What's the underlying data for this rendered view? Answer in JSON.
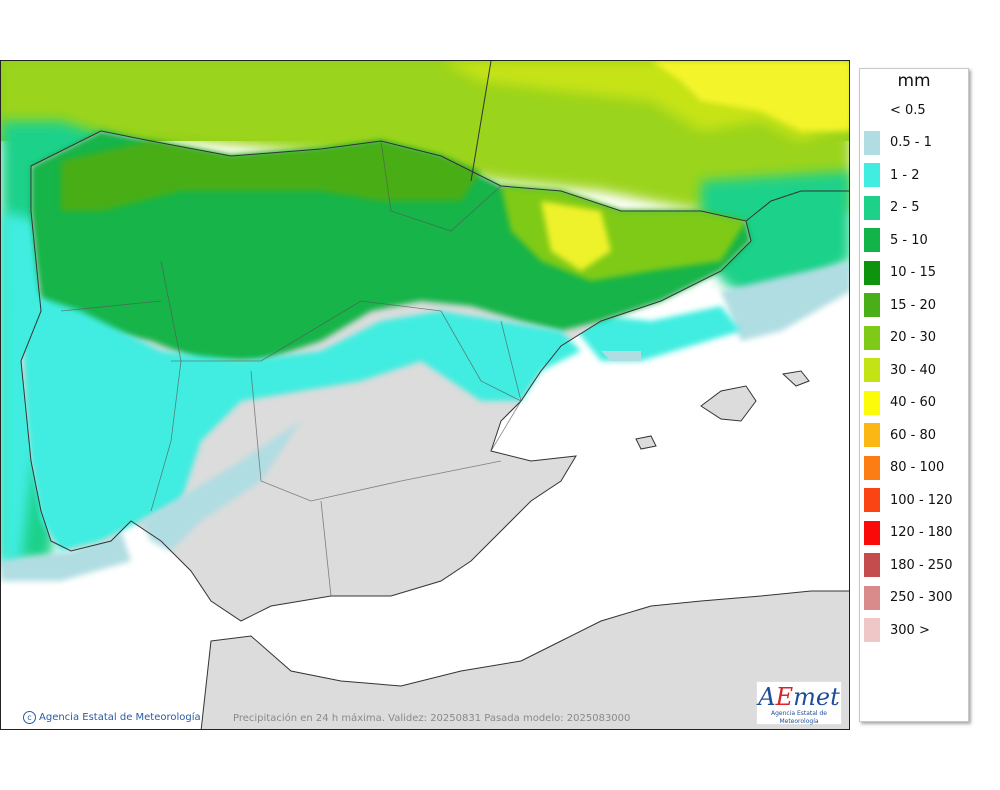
{
  "legend": {
    "unit": "mm",
    "items": [
      {
        "label": "< 0.5",
        "color": "#ffffff"
      },
      {
        "label": "0.5 - 1",
        "color": "#b0dde2"
      },
      {
        "label": "1 - 2",
        "color": "#40ede0"
      },
      {
        "label": "2 - 5",
        "color": "#1ed18a"
      },
      {
        "label": "5 - 10",
        "color": "#12b44a"
      },
      {
        "label": "10 - 15",
        "color": "#0e930f"
      },
      {
        "label": "15 - 20",
        "color": "#49ae17"
      },
      {
        "label": "20 - 30",
        "color": "#7fca19"
      },
      {
        "label": "30 - 40",
        "color": "#c4e314"
      },
      {
        "label": "40 - 60",
        "color": "#fbfb0a"
      },
      {
        "label": "60 - 80",
        "color": "#fbb814"
      },
      {
        "label": "80 - 100",
        "color": "#fb7d14"
      },
      {
        "label": "100 - 120",
        "color": "#fb4414"
      },
      {
        "label": "120 - 180",
        "color": "#fb0a0a"
      },
      {
        "label": "180 - 250",
        "color": "#c44c4c"
      },
      {
        "label": "250 - 300",
        "color": "#d98a8a"
      },
      {
        "label": "300 >",
        "color": "#efc7c7"
      }
    ]
  },
  "footer": {
    "credit": "Agencia Estatal de Meteorología",
    "caption": "Precipitación en 24 h máxima. Validez: 20250831 Pasada modelo: 2025083000"
  },
  "logo": {
    "text_a": "A",
    "text_e": "E",
    "text_rest": "met",
    "subtitle": "Agencia Estatal de Meteorología"
  }
}
